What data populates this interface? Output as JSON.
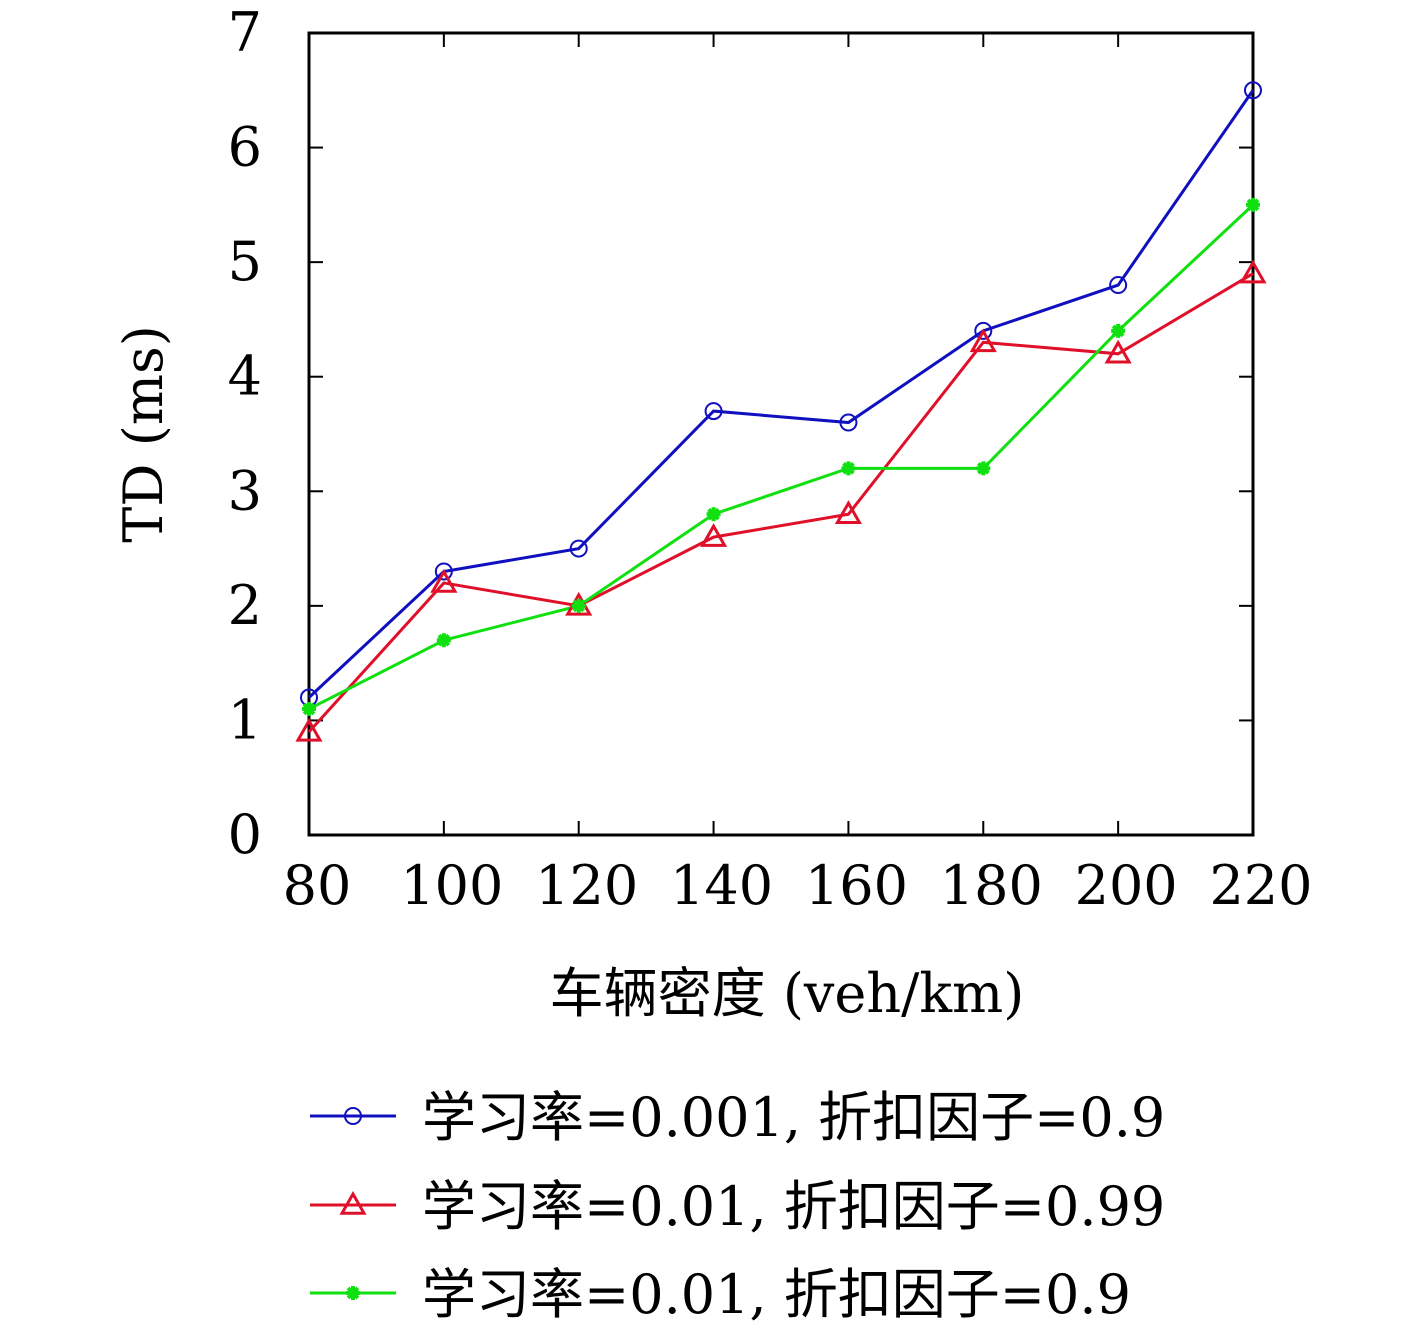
{
  "chart_data": {
    "type": "line",
    "xlabel": "车辆密度 (veh/km)",
    "ylabel": "TD (ms)",
    "x": [
      80,
      100,
      120,
      140,
      160,
      180,
      200,
      220
    ],
    "xlim": [
      80,
      220
    ],
    "ylim": [
      0,
      7
    ],
    "yticks": [
      0,
      1,
      2,
      3,
      4,
      5,
      6,
      7
    ],
    "grid": false,
    "legend_position": "bottom",
    "series": [
      {
        "name": "学习率=0.001, 折扣因子=0.9",
        "color": "#1010c0",
        "marker": "circle",
        "values": [
          1.2,
          2.3,
          2.5,
          3.7,
          3.6,
          4.4,
          4.8,
          6.5
        ]
      },
      {
        "name": "学习率=0.01, 折扣因子=0.99",
        "color": "#e0102a",
        "marker": "triangle",
        "values": [
          0.9,
          2.2,
          2.0,
          2.6,
          2.8,
          4.3,
          4.2,
          4.9
        ]
      },
      {
        "name": "学习率=0.01, 折扣因子=0.9",
        "color": "#10e010",
        "marker": "star",
        "values": [
          1.1,
          1.7,
          2.0,
          2.8,
          3.2,
          3.2,
          4.4,
          5.5
        ]
      }
    ]
  }
}
